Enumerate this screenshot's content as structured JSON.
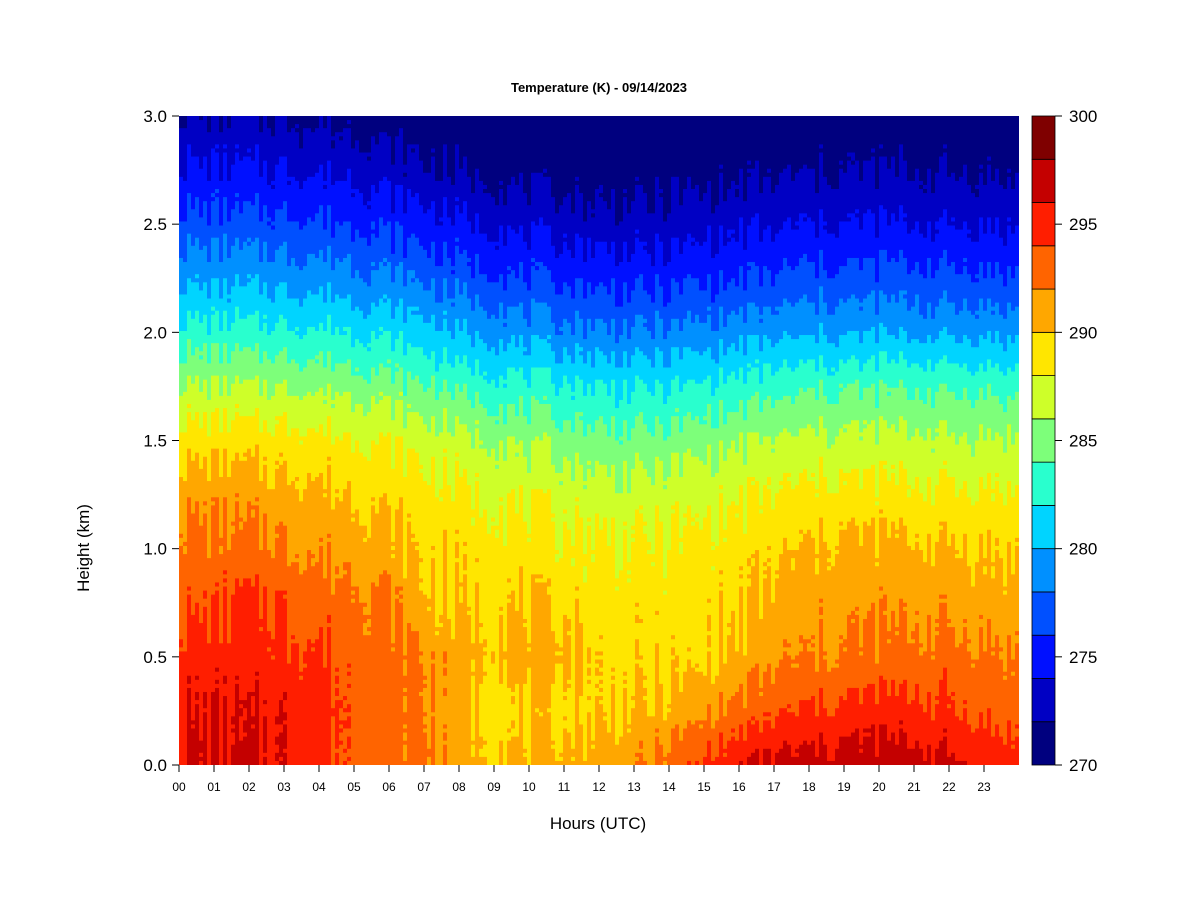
{
  "chart_data": {
    "type": "heatmap",
    "title": "Temperature (K) - 09/14/2023",
    "xlabel": "Hours (UTC)",
    "ylabel": "Height (km)",
    "xlim": [
      0,
      24
    ],
    "ylim": [
      0,
      3.0
    ],
    "x_ticks": [
      "00",
      "01",
      "02",
      "03",
      "04",
      "05",
      "06",
      "07",
      "08",
      "09",
      "10",
      "11",
      "12",
      "13",
      "14",
      "15",
      "16",
      "17",
      "18",
      "19",
      "20",
      "21",
      "22",
      "23"
    ],
    "y_ticks": [
      "0.0",
      "0.5",
      "1.0",
      "1.5",
      "2.0",
      "2.5",
      "3.0"
    ],
    "colorbar": {
      "min": 270,
      "max": 300,
      "step": 2,
      "tick_labels": [
        "270",
        "275",
        "280",
        "285",
        "290",
        "295",
        "300"
      ],
      "colors": [
        "#00007f",
        "#0000c4",
        "#0010ff",
        "#0050ff",
        "#0090ff",
        "#00d4ff",
        "#29ffce",
        "#7dff7a",
        "#ceff29",
        "#ffe600",
        "#ffa700",
        "#ff6400",
        "#ff1e00",
        "#c40000",
        "#7f0000"
      ]
    },
    "hours": [
      0,
      1,
      2,
      3,
      4,
      5,
      6,
      7,
      8,
      9,
      10,
      11,
      12,
      13,
      14,
      15,
      16,
      17,
      18,
      19,
      20,
      21,
      22,
      23,
      24
    ],
    "heights_km": [
      0.0,
      0.25,
      0.5,
      0.75,
      1.0,
      1.25,
      1.5,
      1.75,
      2.0,
      2.25,
      2.5,
      2.75,
      3.0
    ],
    "temperature_k": [
      [
        296.5,
        296.3,
        296.0,
        295.8,
        294.8,
        293.5,
        293.0,
        292.5,
        291.0,
        290.5,
        290.5,
        290.8,
        291.0,
        291.5,
        293.0,
        294.5,
        295.8,
        296.5,
        296.8,
        297.0,
        297.2,
        297.0,
        296.5,
        295.5,
        295.0
      ],
      [
        295.8,
        295.8,
        295.8,
        295.6,
        295.2,
        293.5,
        293.2,
        292.2,
        290.5,
        289.3,
        289.3,
        289.5,
        289.7,
        290.0,
        290.5,
        291.5,
        292.7,
        293.5,
        294.2,
        294.6,
        294.8,
        294.6,
        294.3,
        293.5,
        293.0
      ],
      [
        295.0,
        295.0,
        295.0,
        294.7,
        294.3,
        293.4,
        292.9,
        292.1,
        290.7,
        290.6,
        291.0,
        290.8,
        289.6,
        289.3,
        289.3,
        289.6,
        290.5,
        291.5,
        292.0,
        292.2,
        292.5,
        292.6,
        292.8,
        292.5,
        292.0
      ],
      [
        293.5,
        293.6,
        294.5,
        293.8,
        293.0,
        292.8,
        292.2,
        290.3,
        289.8,
        290.0,
        289.8,
        289.5,
        289.2,
        289.0,
        289.0,
        289.3,
        289.6,
        290.5,
        291.0,
        291.3,
        291.5,
        291.5,
        291.4,
        291.0,
        290.8
      ],
      [
        292.8,
        292.6,
        292.6,
        292.2,
        291.8,
        291.3,
        290.8,
        289.7,
        289.3,
        289.1,
        288.9,
        288.6,
        288.4,
        288.3,
        288.4,
        288.7,
        289.0,
        289.6,
        290.2,
        290.5,
        290.6,
        290.4,
        290.2,
        290.0,
        289.8
      ],
      [
        291.4,
        291.3,
        291.2,
        290.8,
        290.5,
        290.0,
        289.4,
        288.8,
        288.3,
        288.0,
        287.6,
        287.3,
        287.0,
        286.9,
        287.0,
        287.3,
        287.7,
        288.2,
        288.5,
        288.6,
        288.6,
        288.5,
        288.4,
        288.3,
        288.2
      ],
      [
        289.1,
        289.0,
        289.0,
        288.9,
        288.7,
        288.3,
        287.8,
        287.2,
        286.6,
        286.0,
        285.5,
        285.1,
        284.8,
        284.6,
        284.8,
        285.2,
        285.7,
        286.1,
        286.5,
        286.6,
        286.6,
        286.5,
        286.4,
        286.3,
        286.2
      ],
      [
        286.2,
        286.1,
        286.0,
        285.9,
        285.7,
        285.4,
        284.9,
        284.2,
        283.5,
        283.0,
        282.6,
        282.3,
        282.0,
        281.8,
        281.9,
        282.3,
        282.7,
        283.1,
        283.5,
        283.7,
        283.8,
        283.7,
        283.6,
        283.5,
        283.4
      ],
      [
        282.8,
        282.7,
        282.6,
        282.5,
        282.3,
        282.0,
        281.5,
        280.8,
        280.0,
        279.5,
        279.0,
        278.7,
        278.4,
        278.2,
        278.3,
        278.6,
        279.0,
        279.3,
        279.6,
        279.7,
        279.8,
        279.7,
        279.6,
        279.5,
        279.4
      ],
      [
        279.6,
        279.5,
        279.4,
        279.3,
        279.1,
        278.8,
        278.3,
        277.6,
        276.9,
        276.4,
        276.0,
        275.7,
        275.4,
        275.2,
        275.3,
        275.6,
        275.9,
        276.2,
        276.5,
        276.6,
        276.7,
        276.6,
        276.5,
        276.4,
        276.3
      ],
      [
        276.8,
        276.7,
        276.6,
        276.5,
        276.3,
        276.0,
        275.5,
        274.9,
        274.3,
        273.8,
        273.4,
        273.1,
        272.9,
        272.8,
        272.9,
        273.2,
        273.5,
        273.7,
        273.9,
        274.0,
        274.1,
        274.0,
        273.9,
        273.8,
        273.7
      ],
      [
        274.3,
        274.2,
        274.1,
        274.0,
        273.8,
        273.5,
        273.0,
        272.4,
        271.9,
        271.5,
        271.2,
        271.0,
        270.9,
        270.9,
        271.0,
        271.2,
        271.4,
        271.6,
        271.8,
        271.9,
        272.0,
        271.9,
        271.8,
        271.7,
        271.6
      ],
      [
        272.2,
        272.1,
        272.0,
        271.9,
        271.7,
        271.4,
        270.9,
        270.4,
        270.1,
        269.9,
        269.7,
        269.6,
        269.6,
        269.6,
        269.7,
        269.8,
        270.0,
        270.1,
        270.2,
        270.3,
        270.3,
        270.2,
        270.2,
        270.1,
        270.0
      ]
    ]
  }
}
